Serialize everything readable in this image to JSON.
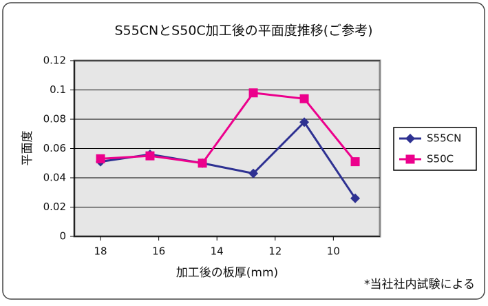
{
  "chart_data": {
    "type": "line",
    "title": "S55CNとS50C加工後の平面度推移(ご参考)",
    "x_label": "加工後の板厚(mm)",
    "y_label": "平面度",
    "annotation": "*当社社内試験による",
    "x": [
      18,
      16.3,
      14.5,
      12.75,
      11,
      9.25
    ],
    "xlim": [
      18.9,
      8.4
    ],
    "xticks": [
      18,
      16,
      14,
      12,
      10
    ],
    "ylim": [
      0,
      0.12
    ],
    "yticks": [
      0,
      0.02,
      0.04,
      0.06,
      0.08,
      0.1,
      0.12
    ],
    "grid": true,
    "legend": "right",
    "series": [
      {
        "name": "S55CN",
        "color": "#2e3192",
        "marker": "diamond",
        "values": [
          0.051,
          0.056,
          0.05,
          0.043,
          0.078,
          0.026
        ]
      },
      {
        "name": "S50C",
        "color": "#ec008c",
        "marker": "square",
        "values": [
          0.053,
          0.055,
          0.05,
          0.098,
          0.094,
          0.051
        ]
      }
    ]
  }
}
